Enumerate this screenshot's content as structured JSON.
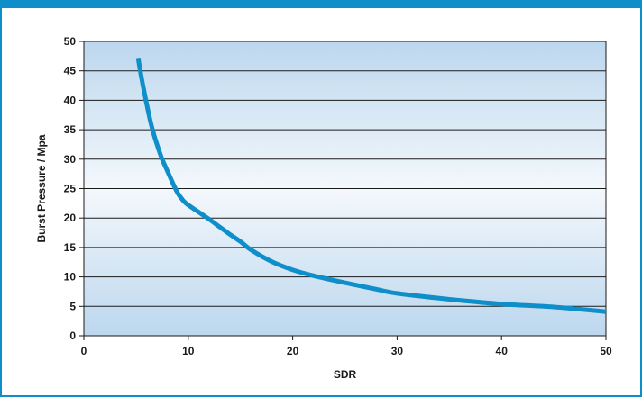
{
  "chart_data": {
    "type": "line",
    "title": "",
    "xlabel": "SDR",
    "ylabel": "Burst Pressure / Mpa",
    "xlim": [
      0,
      50
    ],
    "ylim": [
      0,
      50
    ],
    "xticks": [
      0,
      10,
      20,
      30,
      40,
      50
    ],
    "yticks": [
      0,
      5,
      10,
      15,
      20,
      25,
      30,
      35,
      40,
      45,
      50
    ],
    "grid": "horizontal",
    "legend": "none",
    "series": [
      {
        "color": "#0f8fc9",
        "x": [
          5.2,
          5.5,
          6,
          6.5,
          7,
          7.5,
          8,
          8.5,
          9,
          9.5,
          10,
          11,
          12,
          13,
          14,
          15,
          16,
          18,
          20,
          22,
          25,
          28,
          30,
          35,
          40,
          45,
          50
        ],
        "y": [
          47.2,
          44,
          39.5,
          35.5,
          32.5,
          30,
          28,
          26,
          24.2,
          23,
          22.2,
          21,
          19.8,
          18.5,
          17.2,
          16,
          14.6,
          12.6,
          11.2,
          10.2,
          9,
          7.9,
          7.2,
          6.2,
          5.4,
          4.9,
          4.1
        ]
      }
    ]
  },
  "colors": {
    "frame": "#0f8fc9",
    "line": "#0f8fc9",
    "grid": "#1a1a1a",
    "plot_top": "#bcd7ee",
    "plot_mid": "#f4f8fc",
    "plot_bottom": "#bcd7ee"
  }
}
